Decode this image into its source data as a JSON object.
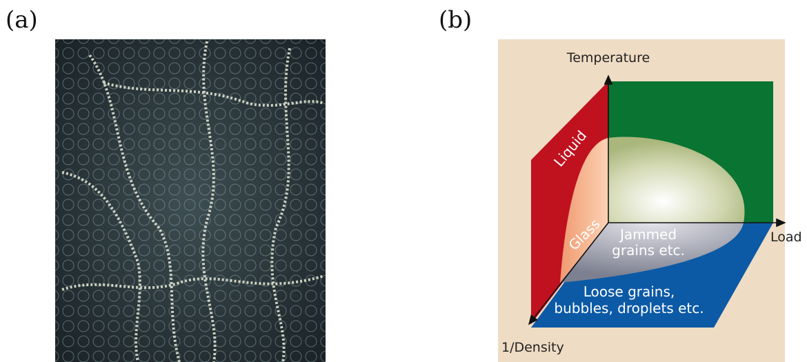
{
  "panel_a": {
    "label": "(a)"
  },
  "panel_b": {
    "label": "(b)",
    "axes": {
      "vertical": "Temperature",
      "horizontal": "Load",
      "depth": "1/Density"
    },
    "regions": {
      "liquid": "Liquid",
      "glass": "Glass",
      "jammed": [
        "Jammed",
        "grains etc."
      ],
      "loose": [
        "Loose grains,",
        "bubbles, droplets etc."
      ]
    }
  }
}
